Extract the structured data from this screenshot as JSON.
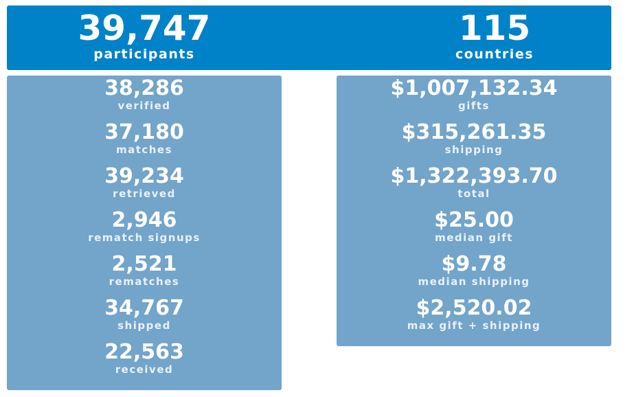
{
  "header": {
    "fragment": "· · · ·"
  },
  "summary": {
    "participants": {
      "value": "39,747",
      "label": "participants"
    },
    "countries": {
      "value": "115",
      "label": "countries"
    }
  },
  "left_stats": [
    {
      "value": "38,286",
      "label": "verified"
    },
    {
      "value": "37,180",
      "label": "matches"
    },
    {
      "value": "39,234",
      "label": "retrieved"
    },
    {
      "value": "2,946",
      "label": "rematch signups"
    },
    {
      "value": "2,521",
      "label": "rematches"
    },
    {
      "value": "34,767",
      "label": "shipped"
    },
    {
      "value": "22,563",
      "label": "received"
    }
  ],
  "right_stats": [
    {
      "value": "$1,007,132.34",
      "label": "gifts"
    },
    {
      "value": "$315,261.35",
      "label": "shipping"
    },
    {
      "value": "$1,322,393.70",
      "label": "total"
    },
    {
      "value": "$25.00",
      "label": "median gift"
    },
    {
      "value": "$9.78",
      "label": "median shipping"
    },
    {
      "value": "$2,520.02",
      "label": "max gift + shipping"
    }
  ],
  "colors": {
    "banner": "#0082c8",
    "panel": "#73a4c9",
    "text": "#ffffff"
  }
}
